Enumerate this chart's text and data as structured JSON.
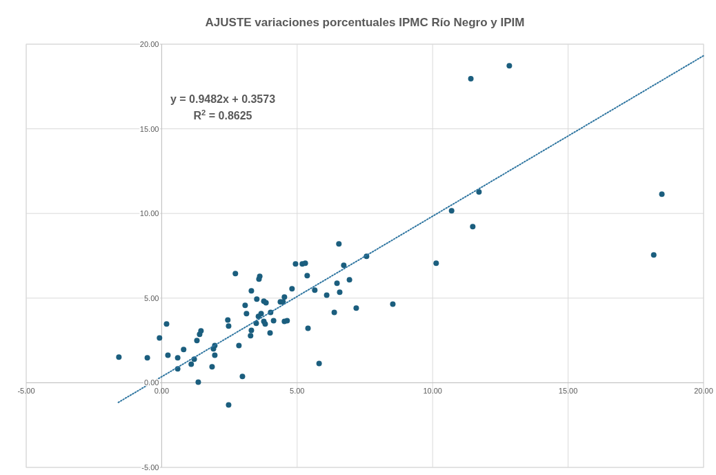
{
  "chart_data": {
    "type": "scatter",
    "title": "AJUSTE variaciones porcentuales IPMC Río Negro y IPIM",
    "xlim": [
      -5,
      20
    ],
    "ylim": [
      -5,
      20
    ],
    "xticks": [
      {
        "value": -5,
        "label": "-5.00"
      },
      {
        "value": 0,
        "label": "0.00"
      },
      {
        "value": 5,
        "label": "5.00"
      },
      {
        "value": 10,
        "label": "10.00"
      },
      {
        "value": 15,
        "label": "15.00"
      },
      {
        "value": 20,
        "label": "20.00"
      }
    ],
    "yticks": [
      {
        "value": -5,
        "label": "-5.00"
      },
      {
        "value": 0,
        "label": "0.00"
      },
      {
        "value": 5,
        "label": "5.00"
      },
      {
        "value": 10,
        "label": "10.00"
      },
      {
        "value": 15,
        "label": "15.00"
      },
      {
        "value": 20,
        "label": "20.00"
      }
    ],
    "grid": true,
    "marker": "circle",
    "annotations": [
      "y = 0.9482x + 0.3573",
      "R$^{2}$ = 0.8625"
    ],
    "series": [
      {
        "color": "#1b5e7e",
        "x": [
          -1.58,
          -0.53,
          -0.08,
          0.18,
          0.23,
          0.59,
          0.59,
          0.81,
          1.09,
          1.2,
          1.3,
          1.4,
          1.45,
          1.35,
          1.86,
          1.91,
          1.96,
          1.96,
          2.44,
          2.47,
          2.47,
          2.72,
          2.85,
          2.98,
          3.08,
          3.13,
          3.62,
          3.59,
          3.31,
          3.51,
          3.77,
          3.85,
          3.67,
          3.57,
          4.02,
          3.49,
          3.77,
          3.82,
          4.13,
          3.31,
          3.28,
          4.0,
          4.81,
          4.53,
          4.38,
          4.48,
          4.53,
          4.63,
          4.94,
          5.19,
          5.3,
          5.37,
          5.65,
          5.4,
          5.81,
          6.09,
          6.37,
          6.47,
          6.57,
          6.54,
          6.72,
          6.93,
          7.18,
          7.56,
          8.53,
          10.13,
          10.7,
          11.41,
          11.48,
          11.71,
          12.83,
          18.16,
          18.46
        ],
        "values": [
          1.51,
          1.47,
          2.65,
          3.47,
          1.63,
          1.47,
          0.82,
          1.96,
          1.1,
          1.39,
          2.49,
          2.86,
          3.06,
          0.04,
          0.94,
          2.0,
          2.2,
          1.63,
          3.71,
          3.35,
          -1.31,
          6.45,
          2.2,
          0.37,
          4.57,
          4.08,
          6.29,
          6.12,
          5.43,
          4.94,
          4.82,
          4.73,
          4.08,
          3.92,
          4.16,
          3.51,
          3.63,
          3.47,
          3.67,
          3.1,
          2.78,
          2.94,
          5.55,
          5.06,
          4.78,
          4.78,
          3.63,
          3.67,
          7.02,
          7.02,
          7.06,
          6.33,
          5.47,
          3.22,
          1.14,
          5.18,
          4.16,
          5.88,
          5.35,
          8.2,
          6.94,
          6.08,
          4.41,
          7.47,
          4.65,
          7.06,
          10.16,
          17.96,
          9.22,
          11.27,
          18.73,
          7.55,
          11.14
        ]
      },
      {
        "type": "line",
        "color": "#2e75a0",
        "line_style": "dotted",
        "marker": "none",
        "x": [
          -1.6,
          20
        ],
        "values": [
          -1.16,
          19.32
        ]
      }
    ]
  }
}
